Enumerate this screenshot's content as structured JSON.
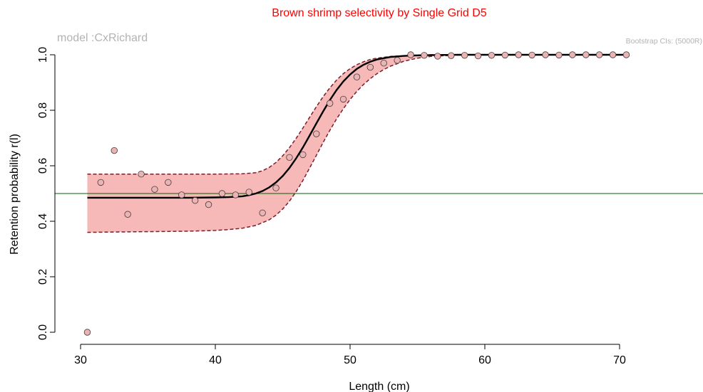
{
  "chart_data": {
    "type": "scatter",
    "title": "Brown shrimp selectivity by Single Grid D5",
    "subtitle_left": "model :CxRichard",
    "subtitle_right": "Bootstrap CIs: (5000R)",
    "xlabel": "Length (cm)",
    "ylabel": "Retention probability r(l)",
    "xlim": [
      30.5,
      70.5
    ],
    "ylim": [
      0,
      1
    ],
    "xticks": [
      30,
      40,
      50,
      60,
      70
    ],
    "yticks": [
      0.0,
      0.2,
      0.4,
      0.6,
      0.8,
      1.0
    ],
    "ytick_labels": [
      "0.0",
      "0.2",
      "0.4",
      "0.6",
      "0.8",
      "1.0"
    ],
    "reference_line": {
      "y": 0.5,
      "color": "#006400"
    },
    "series": [
      {
        "kind": "points",
        "fill": "#e8b4b4",
        "x": [
          30.5,
          31.5,
          32.5,
          33.5,
          34.5,
          35.5,
          36.5,
          37.5,
          38.5,
          39.5,
          40.5,
          41.5,
          42.5,
          43.5,
          44.5,
          45.5,
          46.5,
          47.5,
          48.5,
          49.5,
          50.5,
          51.5,
          52.5,
          53.5,
          54.5,
          55.5,
          56.5,
          57.5,
          58.5,
          59.5,
          60.5,
          61.5,
          62.5,
          63.5,
          64.5,
          65.5,
          66.5,
          67.5,
          68.5,
          69.5,
          70.5
        ],
        "y": [
          0.0,
          0.54,
          0.655,
          0.425,
          0.57,
          0.515,
          0.54,
          0.495,
          0.475,
          0.46,
          0.5,
          0.495,
          0.505,
          0.43,
          0.52,
          0.63,
          0.64,
          0.715,
          0.825,
          0.84,
          0.92,
          0.955,
          0.97,
          0.98,
          1.0,
          0.998,
          0.995,
          0.997,
          0.998,
          0.996,
          0.998,
          0.999,
          1.0,
          0.999,
          1.0,
          0.999,
          1.0,
          1.0,
          1.0,
          1.0,
          1.0
        ]
      },
      {
        "kind": "fitted_curve",
        "color": "#000000",
        "x": [
          30.5,
          32,
          34,
          36,
          38,
          40,
          41,
          42,
          42.5,
          43,
          43.5,
          44,
          44.5,
          45,
          45.5,
          46,
          46.5,
          47,
          47.5,
          48,
          48.5,
          49,
          49.5,
          50,
          50.5,
          51,
          51.5,
          52,
          53,
          54,
          55,
          56,
          58,
          60,
          65,
          70.5
        ],
        "y": [
          0.485,
          0.485,
          0.485,
          0.485,
          0.485,
          0.486,
          0.487,
          0.49,
          0.494,
          0.5,
          0.509,
          0.522,
          0.54,
          0.563,
          0.592,
          0.627,
          0.666,
          0.709,
          0.753,
          0.796,
          0.837,
          0.873,
          0.904,
          0.929,
          0.949,
          0.964,
          0.975,
          0.983,
          0.992,
          0.996,
          0.998,
          0.999,
          1.0,
          1.0,
          1.0,
          1.0
        ]
      },
      {
        "kind": "ci_upper",
        "color": "#7a1f2a",
        "x": [
          30.5,
          34,
          38,
          40,
          42,
          43,
          43.5,
          44,
          44.5,
          45,
          45.5,
          46,
          46.5,
          47,
          47.5,
          48,
          48.5,
          49,
          49.5,
          50,
          50.5,
          51,
          51.5,
          52,
          53,
          54,
          55,
          56,
          58,
          60,
          65,
          70.5
        ],
        "y": [
          0.57,
          0.57,
          0.57,
          0.57,
          0.571,
          0.575,
          0.582,
          0.594,
          0.612,
          0.636,
          0.665,
          0.699,
          0.736,
          0.775,
          0.813,
          0.849,
          0.881,
          0.909,
          0.932,
          0.95,
          0.964,
          0.975,
          0.983,
          0.988,
          0.994,
          0.997,
          0.999,
          1.0,
          1.0,
          1.0,
          1.0,
          1.0
        ]
      },
      {
        "kind": "ci_lower",
        "color": "#7a1f2a",
        "x": [
          30.5,
          34,
          38,
          40,
          41,
          42,
          43,
          44,
          44.5,
          45,
          45.5,
          46,
          46.5,
          47,
          47.5,
          48,
          48.5,
          49,
          49.5,
          50,
          50.5,
          51,
          51.5,
          52,
          52.5,
          53,
          54,
          55,
          56,
          58,
          60,
          65,
          70.5
        ],
        "y": [
          0.36,
          0.362,
          0.364,
          0.367,
          0.37,
          0.375,
          0.385,
          0.405,
          0.422,
          0.444,
          0.472,
          0.507,
          0.547,
          0.592,
          0.638,
          0.684,
          0.728,
          0.769,
          0.806,
          0.839,
          0.868,
          0.893,
          0.914,
          0.932,
          0.947,
          0.959,
          0.977,
          0.988,
          0.994,
          0.999,
          1.0,
          1.0,
          1.0
        ]
      }
    ],
    "ci_fill_color": "#f7b8b8",
    "grid": false
  }
}
